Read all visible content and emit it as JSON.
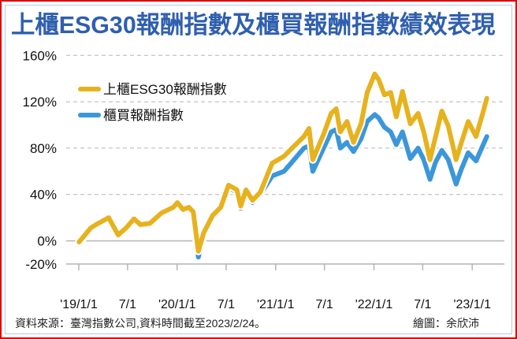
{
  "title": "上櫃ESG30報酬指數及櫃買報酬指數績效表現",
  "source": "資料來源：臺灣指數公司,資料時間截至2023/2/24。",
  "credit": "繪圖：余欣沛",
  "chart_data": {
    "type": "line",
    "title": "上櫃ESG30報酬指數及櫃買報酬指數績效表現",
    "xlabel": "",
    "ylabel": "",
    "ylim": [
      -20,
      160
    ],
    "yticks": [
      "160%",
      "120%",
      "80%",
      "40%",
      "0%",
      "-20%"
    ],
    "ytick_values": [
      160,
      120,
      80,
      40,
      0,
      -20
    ],
    "xticks": [
      "'19/1/1",
      "7/1",
      "'20/1/1",
      "7/1",
      "'21/1/1",
      "7/1",
      "'22/1/1",
      "7/1",
      "'23/1/1"
    ],
    "xtick_dates": [
      "2019-01-01",
      "2019-07-01",
      "2020-01-01",
      "2020-07-01",
      "2021-01-01",
      "2021-07-01",
      "2022-01-01",
      "2022-07-01",
      "2023-01-01"
    ],
    "grid": true,
    "legend_position": "top-left",
    "x": [
      "2019-01-02",
      "2019-02-14",
      "2019-03-06",
      "2019-04-22",
      "2019-05-27",
      "2019-06-25",
      "2019-07-25",
      "2019-08-18",
      "2019-09-22",
      "2019-11-04",
      "2019-12-18",
      "2020-01-02",
      "2020-01-23",
      "2020-02-14",
      "2020-03-01",
      "2020-03-20",
      "2020-04-09",
      "2020-05-12",
      "2020-06-11",
      "2020-07-10",
      "2020-08-10",
      "2020-08-24",
      "2020-09-13",
      "2020-10-07",
      "2020-11-05",
      "2020-12-19",
      "2021-02-01",
      "2021-03-03",
      "2021-04-16",
      "2021-05-05",
      "2021-05-19",
      "2021-06-28",
      "2021-07-26",
      "2021-08-14",
      "2021-08-29",
      "2021-09-23",
      "2021-10-17",
      "2021-11-14",
      "2021-12-07",
      "2022-01-04",
      "2022-01-19",
      "2022-02-09",
      "2022-03-04",
      "2022-03-25",
      "2022-04-17",
      "2022-05-16",
      "2022-06-14",
      "2022-07-05",
      "2022-07-28",
      "2022-08-18",
      "2022-09-10",
      "2022-10-04",
      "2022-11-02",
      "2022-11-22",
      "2022-12-17",
      "2023-01-15",
      "2023-02-09",
      "2023-02-24"
    ],
    "series": [
      {
        "name": "上櫃ESG30報酬指數",
        "color": "#e6b21e",
        "values": [
          -1,
          11,
          14,
          20,
          5,
          11,
          19,
          14,
          15,
          24,
          29,
          33,
          27,
          29,
          25,
          -9,
          7,
          22,
          29,
          48,
          44,
          30,
          44,
          35,
          42,
          67,
          73,
          80,
          90,
          97,
          70,
          92,
          110,
          114,
          94,
          103,
          85,
          101,
          128,
          144,
          139,
          126,
          128,
          107,
          129,
          101,
          110,
          94,
          70,
          90,
          112,
          99,
          70,
          85,
          103,
          90,
          110,
          123
        ]
      },
      {
        "name": "櫃買報酬指數",
        "color": "#3b97d9",
        "values": [
          -2,
          10,
          13,
          19,
          4,
          10,
          18,
          13,
          14,
          23,
          28,
          32,
          26,
          28,
          24,
          -14,
          5,
          20,
          27,
          46,
          42,
          28,
          42,
          33,
          40,
          56,
          60,
          68,
          80,
          82,
          60,
          80,
          94,
          96,
          80,
          85,
          77,
          88,
          103,
          109,
          106,
          98,
          94,
          83,
          94,
          71,
          80,
          70,
          53,
          68,
          78,
          70,
          49,
          62,
          76,
          69,
          82,
          90
        ]
      }
    ]
  }
}
